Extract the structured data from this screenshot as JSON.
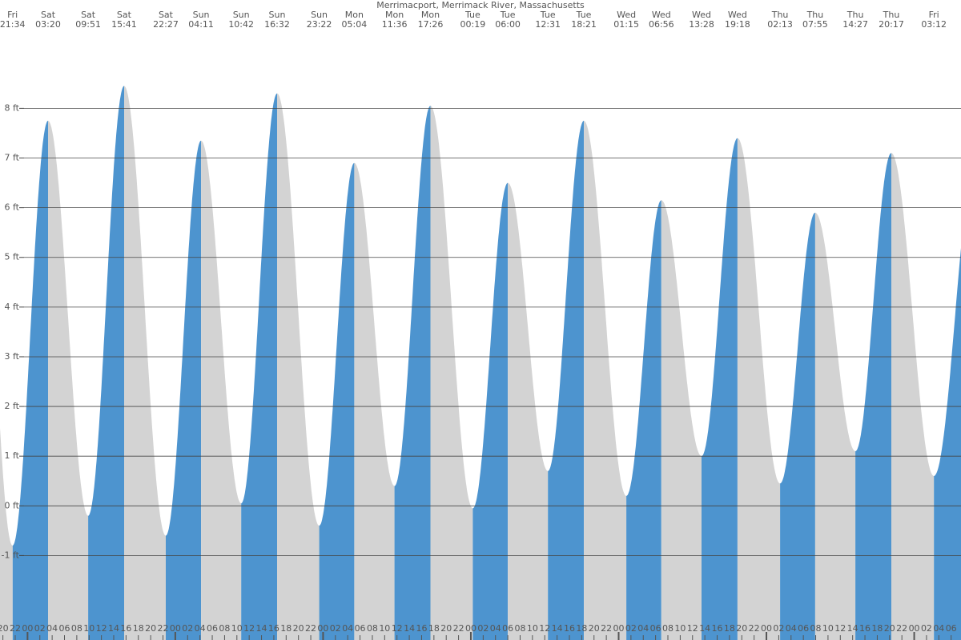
{
  "chart_data": {
    "type": "tide",
    "title": "Merrimacport, Merrimack River, Massachusetts",
    "rising_color": "#4d94cf",
    "falling_color": "#d3d3d3",
    "grid": true,
    "ylim": [
      -2.7,
      10.18
    ],
    "yticks": [
      {
        "value": -1,
        "label": "-1 ft"
      },
      {
        "value": 0,
        "label": "0 ft"
      },
      {
        "value": 1,
        "label": "1 ft"
      },
      {
        "value": 2,
        "label": "2 ft"
      },
      {
        "value": 3,
        "label": "3 ft"
      },
      {
        "value": 4,
        "label": "4 ft"
      },
      {
        "value": 5,
        "label": "5 ft"
      },
      {
        "value": 6,
        "label": "6 ft"
      },
      {
        "value": 7,
        "label": "7 ft"
      },
      {
        "value": 8,
        "label": "8 ft"
      }
    ],
    "xlim": [
      19.53,
      175.6
    ],
    "xticks": [
      {
        "value": 20,
        "label": "20"
      },
      {
        "value": 22,
        "label": "22"
      },
      {
        "value": 24,
        "label": "00"
      },
      {
        "value": 26,
        "label": "02"
      },
      {
        "value": 28,
        "label": "04"
      },
      {
        "value": 30,
        "label": "06"
      },
      {
        "value": 32,
        "label": "08"
      },
      {
        "value": 34,
        "label": "10"
      },
      {
        "value": 36,
        "label": "12"
      },
      {
        "value": 38,
        "label": "14"
      },
      {
        "value": 40,
        "label": "16"
      },
      {
        "value": 42,
        "label": "18"
      },
      {
        "value": 44,
        "label": "20"
      },
      {
        "value": 46,
        "label": "22"
      },
      {
        "value": 48,
        "label": "00"
      },
      {
        "value": 50,
        "label": "02"
      },
      {
        "value": 52,
        "label": "04"
      },
      {
        "value": 54,
        "label": "06"
      },
      {
        "value": 56,
        "label": "08"
      },
      {
        "value": 58,
        "label": "10"
      },
      {
        "value": 60,
        "label": "12"
      },
      {
        "value": 62,
        "label": "14"
      },
      {
        "value": 64,
        "label": "16"
      },
      {
        "value": 66,
        "label": "18"
      },
      {
        "value": 68,
        "label": "20"
      },
      {
        "value": 70,
        "label": "22"
      },
      {
        "value": 72,
        "label": "00"
      },
      {
        "value": 74,
        "label": "02"
      },
      {
        "value": 76,
        "label": "04"
      },
      {
        "value": 78,
        "label": "06"
      },
      {
        "value": 80,
        "label": "08"
      },
      {
        "value": 82,
        "label": "10"
      },
      {
        "value": 84,
        "label": "12"
      },
      {
        "value": 86,
        "label": "14"
      },
      {
        "value": 88,
        "label": "16"
      },
      {
        "value": 90,
        "label": "18"
      },
      {
        "value": 92,
        "label": "20"
      },
      {
        "value": 94,
        "label": "22"
      },
      {
        "value": 96,
        "label": "00"
      },
      {
        "value": 98,
        "label": "02"
      },
      {
        "value": 100,
        "label": "04"
      },
      {
        "value": 102,
        "label": "06"
      },
      {
        "value": 104,
        "label": "08"
      },
      {
        "value": 106,
        "label": "10"
      },
      {
        "value": 108,
        "label": "12"
      },
      {
        "value": 110,
        "label": "14"
      },
      {
        "value": 112,
        "label": "16"
      },
      {
        "value": 114,
        "label": "18"
      },
      {
        "value": 116,
        "label": "20"
      },
      {
        "value": 118,
        "label": "22"
      },
      {
        "value": 120,
        "label": "00"
      },
      {
        "value": 122,
        "label": "02"
      },
      {
        "value": 124,
        "label": "04"
      },
      {
        "value": 126,
        "label": "06"
      },
      {
        "value": 128,
        "label": "08"
      },
      {
        "value": 130,
        "label": "10"
      },
      {
        "value": 132,
        "label": "12"
      },
      {
        "value": 134,
        "label": "14"
      },
      {
        "value": 136,
        "label": "16"
      },
      {
        "value": 138,
        "label": "18"
      },
      {
        "value": 140,
        "label": "20"
      },
      {
        "value": 142,
        "label": "22"
      },
      {
        "value": 144,
        "label": "00"
      },
      {
        "value": 146,
        "label": "02"
      },
      {
        "value": 148,
        "label": "04"
      },
      {
        "value": 150,
        "label": "06"
      },
      {
        "value": 152,
        "label": "08"
      },
      {
        "value": 154,
        "label": "10"
      },
      {
        "value": 156,
        "label": "12"
      },
      {
        "value": 158,
        "label": "14"
      },
      {
        "value": 160,
        "label": "16"
      },
      {
        "value": 162,
        "label": "18"
      },
      {
        "value": 164,
        "label": "20"
      },
      {
        "value": 166,
        "label": "22"
      },
      {
        "value": 168,
        "label": "00"
      },
      {
        "value": 170,
        "label": "02"
      },
      {
        "value": 172,
        "label": "04"
      },
      {
        "value": 174,
        "label": "06"
      }
    ],
    "events": [
      {
        "day": "Fri",
        "time": "21:34",
        "height": -0.8
      },
      {
        "day": "Sat",
        "time": "03:20",
        "height": 7.75
      },
      {
        "day": "Sat",
        "time": "09:51",
        "height": -0.2
      },
      {
        "day": "Sat",
        "time": "15:41",
        "height": 8.45
      },
      {
        "day": "Sat",
        "time": "22:27",
        "height": -0.6
      },
      {
        "day": "Sun",
        "time": "04:11",
        "height": 7.35
      },
      {
        "day": "Sun",
        "time": "10:42",
        "height": 0.05
      },
      {
        "day": "Sun",
        "time": "16:32",
        "height": 8.3
      },
      {
        "day": "Sun",
        "time": "23:22",
        "height": -0.4
      },
      {
        "day": "Mon",
        "time": "05:04",
        "height": 6.9
      },
      {
        "day": "Mon",
        "time": "11:36",
        "height": 0.4
      },
      {
        "day": "Mon",
        "time": "17:26",
        "height": 8.05
      },
      {
        "day": "Tue",
        "time": "00:19",
        "height": -0.05
      },
      {
        "day": "Tue",
        "time": "06:00",
        "height": 6.5
      },
      {
        "day": "Tue",
        "time": "12:31",
        "height": 0.7
      },
      {
        "day": "Tue",
        "time": "18:21",
        "height": 7.75
      },
      {
        "day": "Wed",
        "time": "01:15",
        "height": 0.2
      },
      {
        "day": "Wed",
        "time": "06:56",
        "height": 6.15
      },
      {
        "day": "Wed",
        "time": "13:28",
        "height": 1.0
      },
      {
        "day": "Wed",
        "time": "19:18",
        "height": 7.4
      },
      {
        "day": "Thu",
        "time": "02:13",
        "height": 0.45
      },
      {
        "day": "Thu",
        "time": "07:55",
        "height": 5.9
      },
      {
        "day": "Thu",
        "time": "14:27",
        "height": 1.1
      },
      {
        "day": "Thu",
        "time": "20:17",
        "height": 7.1
      },
      {
        "day": "Fri",
        "time": "03:12",
        "height": 0.6
      }
    ]
  }
}
